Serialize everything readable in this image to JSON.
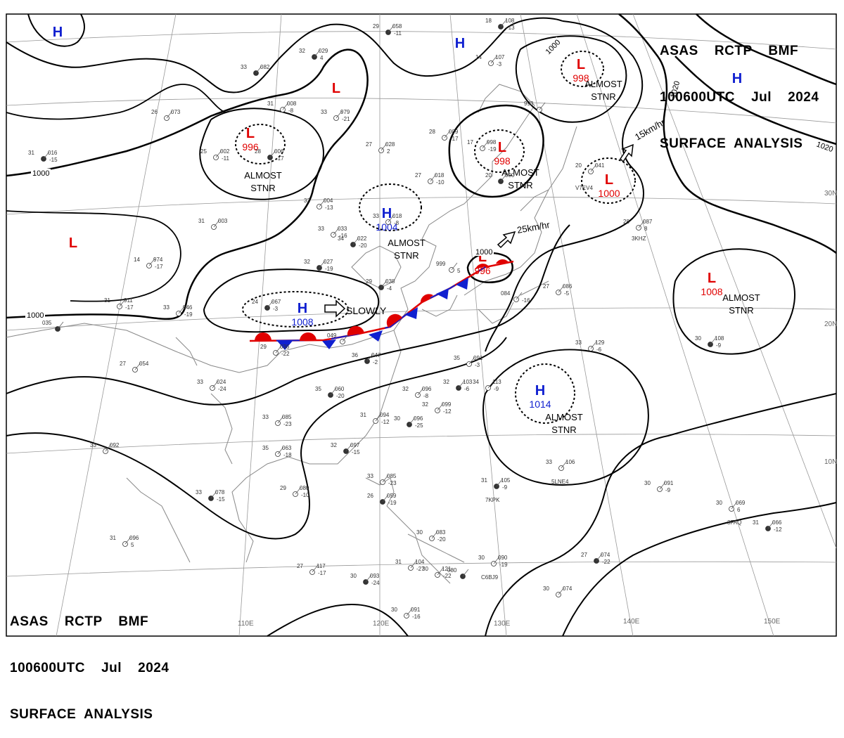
{
  "header": {
    "line1": "ASAS    RCTP    BMF",
    "line2": "100600UTC    Jul    2024",
    "line3": "SURFACE  ANALYSIS"
  },
  "footer": {
    "line1": "ASAS    RCTP    BMF",
    "line2": "100600UTC    Jul    2024",
    "line3": "SURFACE  ANALYSIS"
  },
  "colors": {
    "high": "#1020d0",
    "low": "#e00000",
    "isobar": "#000000",
    "coast": "#888888"
  },
  "lat_labels": [
    "30N",
    "20N",
    "10N"
  ],
  "lon_labels": [
    "110E",
    "120E",
    "130E",
    "140E",
    "150E"
  ],
  "isobar_labels": [
    "1000",
    "1000",
    "1000",
    "1000",
    "1020",
    "1020"
  ],
  "systems": [
    {
      "type": "H",
      "letter": "H"
    },
    {
      "type": "H",
      "letter": "H"
    },
    {
      "type": "H",
      "letter": "H"
    },
    {
      "type": "L",
      "letter": "L"
    },
    {
      "type": "L",
      "letter": "L",
      "pressure": "996",
      "note1": "ALMOST",
      "note2": "STNR"
    },
    {
      "type": "L",
      "letter": "L"
    },
    {
      "type": "H",
      "letter": "H",
      "pressure": "1004",
      "note1": "ALMOST",
      "note2": "STNR"
    },
    {
      "type": "H",
      "letter": "H",
      "pressure": "1008",
      "motion": "SLOWLY"
    },
    {
      "type": "L",
      "letter": "L",
      "pressure": "998",
      "note1": "ALMOST",
      "note2": "STNR"
    },
    {
      "type": "L",
      "letter": "L",
      "pressure": "998",
      "note1": "ALMOST",
      "note2": "STNR"
    },
    {
      "type": "L",
      "letter": "L",
      "pressure": "1000"
    },
    {
      "type": "L",
      "letter": "L",
      "pressure": "996"
    },
    {
      "type": "L",
      "letter": "L",
      "pressure": "1008",
      "note1": "ALMOST",
      "note2": "STNR"
    },
    {
      "type": "H",
      "letter": "H",
      "pressure": "1014",
      "note1": "ALMOST",
      "note2": "STNR"
    }
  ],
  "motion_arrows": [
    {
      "text": "15km/hr"
    },
    {
      "text": "25km/hr"
    }
  ],
  "stations": [
    {
      "t": "32",
      "p": "029",
      "d": "4"
    },
    {
      "t": "31",
      "p": "008",
      "d": "-8"
    },
    {
      "t": "33",
      "p": "979",
      "d": "-21"
    },
    {
      "t": "28",
      "p": "006",
      "d": "-17"
    },
    {
      "t": "25",
      "p": "002",
      "d": "-11"
    },
    {
      "t": "26",
      "p": "073"
    },
    {
      "t": "31",
      "p": "016",
      "d": "-15"
    },
    {
      "t": "27",
      "p": "028",
      "d": "2"
    },
    {
      "t": "28",
      "p": "009",
      "d": "-17"
    },
    {
      "t": "29",
      "p": "058",
      "d": "-11"
    },
    {
      "t": "32",
      "p": "004",
      "d": "-13"
    },
    {
      "t": "33",
      "p": "033",
      "d": "-16"
    },
    {
      "t": "34",
      "p": "022",
      "d": "-20"
    },
    {
      "t": "27",
      "p": "018",
      "d": "-10"
    },
    {
      "t": "33",
      "p": "018",
      "d": "-8"
    },
    {
      "t": "32",
      "p": "027",
      "d": "-19"
    },
    {
      "t": "31",
      "p": "003"
    },
    {
      "t": "14",
      "p": "974",
      "d": "-17"
    },
    {
      "t": "29",
      "p": "038",
      "d": "-4"
    },
    {
      "t": "999",
      "p": "",
      "d": "5"
    },
    {
      "t": "17",
      "p": "998",
      "d": "-19"
    },
    {
      "t": "20",
      "p": "000"
    },
    {
      "t": "20",
      "p": "041"
    },
    {
      "t": "993",
      "p": ""
    },
    {
      "t": "24",
      "p": "067",
      "d": "-3"
    },
    {
      "t": "31",
      "p": "911",
      "d": "-17"
    },
    {
      "t": "33",
      "p": "946",
      "d": "-19"
    },
    {
      "t": "035",
      "p": ""
    },
    {
      "t": "29",
      "p": "036",
      "d": "-22"
    },
    {
      "t": "049",
      "p": ""
    },
    {
      "t": "36",
      "p": "047",
      "d": "-2"
    },
    {
      "t": "27",
      "p": "054"
    },
    {
      "t": "33",
      "p": "024",
      "d": "-24"
    },
    {
      "t": "35",
      "p": "060",
      "d": "-20"
    },
    {
      "t": "32",
      "p": "096",
      "d": "-8"
    },
    {
      "t": "32",
      "p": "099",
      "d": "-12"
    },
    {
      "t": "30",
      "p": "096",
      "d": "-25"
    },
    {
      "t": "31",
      "p": "094",
      "d": "-12"
    },
    {
      "t": "33",
      "p": "085",
      "d": "-23"
    },
    {
      "t": "32",
      "p": "103",
      "d": "-6"
    },
    {
      "t": "34",
      "p": "113",
      "d": "-9"
    },
    {
      "t": "35",
      "p": "091",
      "d": "-3"
    },
    {
      "t": "32",
      "p": "097",
      "d": "-15"
    },
    {
      "t": "35",
      "p": "063",
      "d": "-18"
    },
    {
      "t": "33",
      "p": "092"
    },
    {
      "t": "33",
      "p": "078",
      "d": "-15"
    },
    {
      "t": "29",
      "p": "080",
      "d": "-10"
    },
    {
      "t": "33",
      "p": "085",
      "d": "-23"
    },
    {
      "t": "26",
      "p": "059",
      "d": "-19"
    },
    {
      "t": "31",
      "p": "096",
      "d": "5"
    },
    {
      "t": "27",
      "p": "117",
      "d": "-17"
    },
    {
      "t": "30",
      "p": "093",
      "d": "-24"
    },
    {
      "t": "31",
      "p": "104",
      "d": "-27"
    },
    {
      "t": "30",
      "p": "121",
      "d": "-22"
    },
    {
      "t": "080",
      "p": ""
    },
    {
      "t": "30",
      "p": "083",
      "d": "-20"
    },
    {
      "t": "30",
      "p": "090",
      "d": "-19"
    },
    {
      "t": "31",
      "p": "105",
      "d": "-9"
    },
    {
      "t": "33",
      "p": "106"
    },
    {
      "t": "33",
      "p": "129",
      "d": "-6"
    },
    {
      "t": "30",
      "p": "108",
      "d": "-9"
    },
    {
      "t": "27",
      "p": "086",
      "d": "-5"
    },
    {
      "t": "30",
      "p": "091",
      "d": "-9"
    },
    {
      "t": "27",
      "p": "074",
      "d": "-22"
    },
    {
      "t": "30",
      "p": "074"
    },
    {
      "t": "30",
      "p": "069",
      "d": "6"
    },
    {
      "t": "31",
      "p": "066",
      "d": "-12"
    },
    {
      "t": "28",
      "p": "087",
      "d": "8"
    },
    {
      "t": "14",
      "p": "107",
      "d": "-3"
    },
    {
      "t": "18",
      "p": "108",
      "d": "-13"
    },
    {
      "t": "30",
      "p": "091",
      "d": "-16"
    },
    {
      "t": "084",
      "p": "",
      "d": "-16"
    },
    {
      "t": "33",
      "p": "082"
    }
  ],
  "station_ids": [
    "7KPK",
    "5LNE4",
    "C6BJ9",
    "3FAQ",
    "3KHZ",
    "V7EV4"
  ]
}
